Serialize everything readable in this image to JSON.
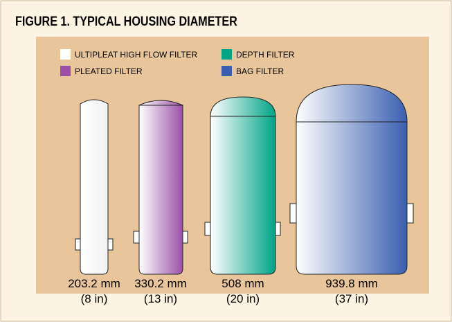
{
  "title": "FIGURE 1.  TYPICAL HOUSING DIAMETER",
  "legend": [
    "ULTIPLEAT HIGH FLOW FILTER",
    "PLEATED FILTER",
    "DEPTH FILTER",
    "BAG FILTER"
  ],
  "housings": [
    {
      "metric": "203.2 mm",
      "imperial": "(8 in)"
    },
    {
      "metric": "330.2 mm",
      "imperial": "(13 in)"
    },
    {
      "metric": "508 mm",
      "imperial": "(20 in)"
    },
    {
      "metric": "939.8 mm",
      "imperial": "(37 in)"
    }
  ]
}
